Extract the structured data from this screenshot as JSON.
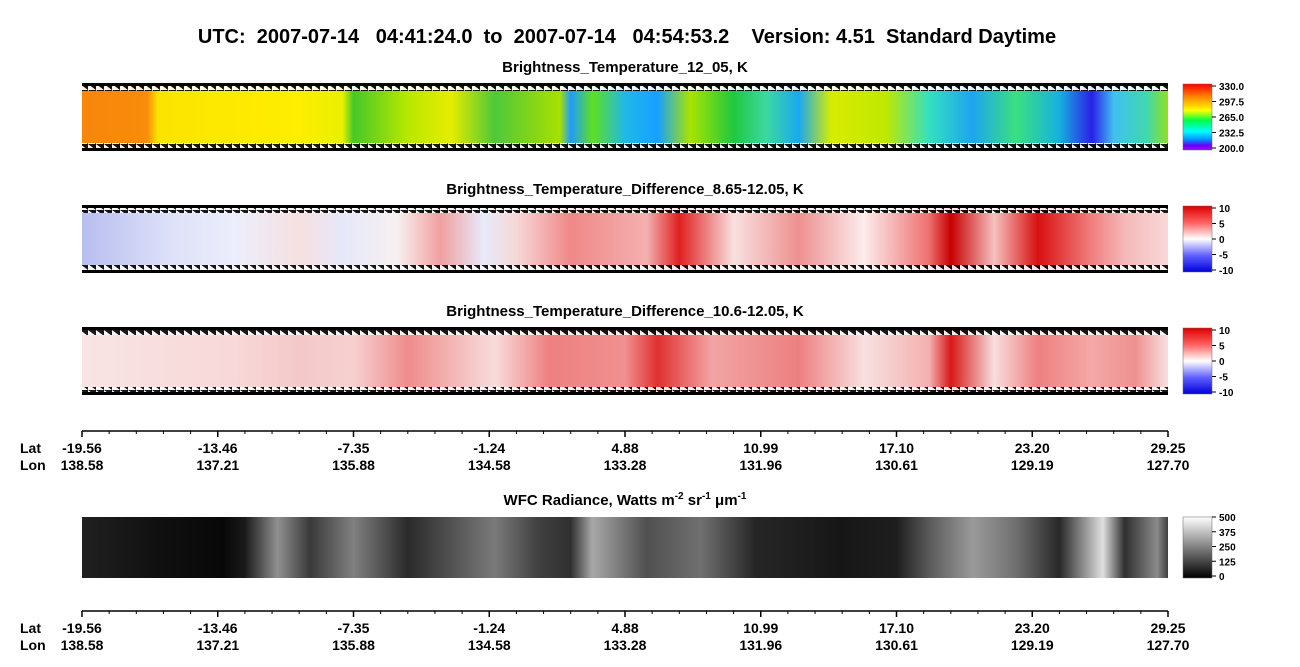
{
  "title": "UTC:  2007-07-14   04:41:24.0  to  2007-07-14   04:54:53.2    Version: 4.51  Standard Daytime",
  "panels": [
    {
      "title": "Brightness_Temperature_12_05, K",
      "colorbar_labels": [
        "330.0",
        "297.5",
        "265.0",
        "232.5",
        "200.0"
      ]
    },
    {
      "title": "Brightness_Temperature_Difference_8.65-12.05, K",
      "colorbar_labels": [
        "10",
        "5",
        "0",
        "-5",
        "-10"
      ]
    },
    {
      "title": "Brightness_Temperature_Difference_10.6-12.05, K",
      "colorbar_labels": [
        "10",
        "5",
        "0",
        "-5",
        "-10"
      ]
    }
  ],
  "wfc": {
    "title_segments": [
      "WFC Radiance, Watts m",
      "-2",
      " sr",
      "-1",
      " μm",
      "-1"
    ],
    "colorbar_labels": [
      "500",
      "375",
      "250",
      "125",
      "0"
    ]
  },
  "axes": [
    {
      "lat_label": "Lat",
      "lon_label": "Lon",
      "lat": [
        "-19.56",
        "-13.46",
        "-7.35",
        "-1.24",
        "4.88",
        "10.99",
        "17.10",
        "23.20",
        "29.25"
      ],
      "lon": [
        "138.58",
        "137.21",
        "135.88",
        "134.58",
        "133.28",
        "131.96",
        "130.61",
        "129.19",
        "127.70"
      ]
    },
    {
      "lat_label": "Lat",
      "lon_label": "Lon",
      "lat": [
        "-19.56",
        "-13.46",
        "-7.35",
        "-1.24",
        "4.88",
        "10.99",
        "17.10",
        "23.20",
        "29.25"
      ],
      "lon": [
        "138.58",
        "137.21",
        "135.88",
        "134.58",
        "133.28",
        "131.96",
        "130.61",
        "129.19",
        "127.70"
      ]
    }
  ]
}
